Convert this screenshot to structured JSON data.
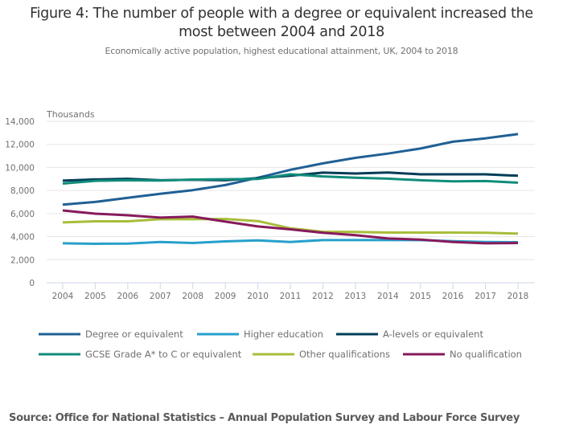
{
  "chart_data": {
    "type": "line",
    "title": "Figure 4: The number of people with a degree or equivalent increased the most between 2004 and 2018",
    "title_lines": [
      "Figure 4: The number of people with a degree or equivalent increased the",
      "most between 2004 and 2018"
    ],
    "subtitle": "Economically active population, highest educational attainment, UK, 2004 to 2018",
    "xlabel": "",
    "ylabel": "Thousands",
    "x": [
      "2004",
      "2005",
      "2006",
      "2007",
      "2008",
      "2009",
      "2010",
      "2011",
      "2012",
      "2013",
      "2014",
      "2015",
      "2016",
      "2017",
      "2018"
    ],
    "ylim": [
      0,
      14000
    ],
    "yticks": [
      0,
      2000,
      4000,
      6000,
      8000,
      10000,
      12000,
      14000
    ],
    "ytick_labels": [
      "0",
      "2,000",
      "4,000",
      "6,000",
      "8,000",
      "10,000",
      "12,000",
      "14,000"
    ],
    "grid": true,
    "legend_position": "bottom",
    "series": [
      {
        "name": "Degree or equivalent",
        "color": "#206095",
        "values": [
          6780,
          7010,
          7360,
          7710,
          8030,
          8470,
          9100,
          9790,
          10350,
          10830,
          11200,
          11640,
          12230,
          12520,
          12890
        ]
      },
      {
        "name": "Higher education",
        "color": "#27a0cc",
        "values": [
          3420,
          3380,
          3400,
          3540,
          3450,
          3590,
          3680,
          3540,
          3700,
          3700,
          3700,
          3700,
          3610,
          3540,
          3520
        ]
      },
      {
        "name": "A-levels or equivalent",
        "color": "#003c57",
        "values": [
          8850,
          8960,
          9010,
          8890,
          8930,
          8890,
          9070,
          9280,
          9550,
          9470,
          9560,
          9400,
          9400,
          9400,
          9280
        ]
      },
      {
        "name": "GCSE Grade A* to C or equivalent",
        "color": "#118c7b",
        "values": [
          8600,
          8840,
          8890,
          8870,
          8940,
          8980,
          9000,
          9400,
          9220,
          9100,
          9030,
          8890,
          8800,
          8820,
          8680
        ]
      },
      {
        "name": "Other qualifications",
        "color": "#a8bd3a",
        "values": [
          5230,
          5330,
          5330,
          5510,
          5510,
          5530,
          5350,
          4720,
          4420,
          4400,
          4350,
          4350,
          4350,
          4330,
          4260
        ]
      },
      {
        "name": "No qualification",
        "color": "#871a5b",
        "values": [
          6270,
          5990,
          5850,
          5650,
          5740,
          5300,
          4880,
          4630,
          4330,
          4120,
          3840,
          3750,
          3540,
          3420,
          3450
        ]
      }
    ]
  },
  "source": "Source: Office for National Statistics – Annual Population Survey and Labour Force Survey"
}
